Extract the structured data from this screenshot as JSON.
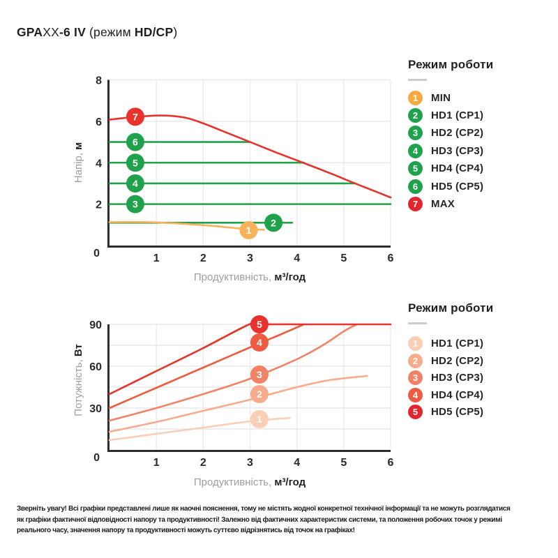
{
  "page": {
    "title_parts": [
      {
        "text": "GPA",
        "bold": true
      },
      {
        "text": "XX",
        "bold": false
      },
      {
        "text": "-6 IV",
        "bold": true
      },
      {
        "text": " (режим ",
        "bold": false
      },
      {
        "text": "HD/CP",
        "bold": true
      },
      {
        "text": ")",
        "bold": false
      }
    ]
  },
  "colors": {
    "accent_red": "#E4262C",
    "accent_green": "#1FA24B",
    "accent_orange": "#F7A93F",
    "axis_dark": "#2D2D2D",
    "grid": "#E9E9E9",
    "label_gray": "#9E9E9E"
  },
  "legend_top": {
    "title": "Режим роботи",
    "items": [
      {
        "badge": "1",
        "label": "MIN",
        "color": "#F7A93F"
      },
      {
        "badge": "2",
        "label": "HD1 (CP1)",
        "color": "#1FA24B"
      },
      {
        "badge": "3",
        "label": "HD2 (CP2)",
        "color": "#1FA24B"
      },
      {
        "badge": "4",
        "label": "HD3 (CP3)",
        "color": "#1FA24B"
      },
      {
        "badge": "5",
        "label": "HD4 (CP4)",
        "color": "#1FA24B"
      },
      {
        "badge": "6",
        "label": "HD5 (CP5)",
        "color": "#1FA24B"
      },
      {
        "badge": "7",
        "label": "MAX",
        "color": "#E4262C"
      }
    ]
  },
  "legend_bottom": {
    "title": "Режим роботи",
    "items": [
      {
        "badge": "1",
        "label": "HD1 (CP1)",
        "color": "#FACDB5"
      },
      {
        "badge": "2",
        "label": "HD2 (CP2)",
        "color": "#F8AB8B"
      },
      {
        "badge": "3",
        "label": "HD3 (CP3)",
        "color": "#F28266"
      },
      {
        "badge": "4",
        "label": "HD4 (CP4)",
        "color": "#EE5B40"
      },
      {
        "badge": "5",
        "label": "HD5 (CP5)",
        "color": "#E4262C"
      }
    ]
  },
  "chart_data": [
    {
      "type": "line",
      "title": "",
      "xlabel": "Продуктивність, м³/год",
      "ylabel": "Напір, м",
      "xlabel_gray": "Продуктивність, ",
      "xlabel_bold": "м³/год",
      "ylabel_gray": "Напір, ",
      "ylabel_bold": "м",
      "xlim": [
        0,
        6
      ],
      "ylim": [
        0,
        8
      ],
      "xticks": [
        0,
        1,
        2,
        3,
        4,
        5,
        6
      ],
      "yticks": [
        0,
        2,
        4,
        6,
        8
      ],
      "grid_x": [
        1,
        2,
        3,
        4,
        5,
        6
      ],
      "grid_y": [
        2,
        4,
        6,
        8
      ],
      "legend_position": "right",
      "series": [
        {
          "name": "HD1 (CP1)",
          "badge": "2",
          "color": "#1FA24B",
          "points": [
            [
              0,
              1.1
            ],
            [
              3.9,
              1.1
            ]
          ],
          "badge_at": [
            3.5,
            1.1
          ]
        },
        {
          "name": "HD2 (CP2)",
          "badge": "3",
          "color": "#1FA24B",
          "points": [
            [
              0,
              2
            ],
            [
              6,
              2
            ]
          ],
          "badge_at": [
            0.55,
            2
          ]
        },
        {
          "name": "HD3 (CP3)",
          "badge": "4",
          "color": "#1FA24B",
          "points": [
            [
              0,
              3
            ],
            [
              5.25,
              3
            ]
          ],
          "badge_at": [
            0.55,
            3
          ]
        },
        {
          "name": "HD4 (CP4)",
          "badge": "5",
          "color": "#1FA24B",
          "points": [
            [
              0,
              4
            ],
            [
              4.15,
              4
            ]
          ],
          "badge_at": [
            0.55,
            4
          ]
        },
        {
          "name": "HD5 (CP5)",
          "badge": "6",
          "color": "#1FA24B",
          "points": [
            [
              0,
              5
            ],
            [
              3.0,
              5
            ]
          ],
          "badge_at": [
            0.55,
            5
          ]
        },
        {
          "name": "MAX",
          "badge": "7",
          "color": "#E9322B",
          "points": [
            [
              0,
              6.08
            ],
            [
              0.5,
              6.2
            ],
            [
              1.1,
              6.28
            ],
            [
              1.6,
              6.18
            ],
            [
              2.0,
              5.9
            ],
            [
              2.5,
              5.45
            ],
            [
              3.0,
              5.0
            ],
            [
              3.55,
              4.5
            ],
            [
              4.13,
              4.0
            ],
            [
              4.7,
              3.5
            ],
            [
              5.24,
              3.0
            ],
            [
              5.6,
              2.68
            ],
            [
              6,
              2.32
            ]
          ],
          "badge_at": [
            0.55,
            6.22
          ]
        },
        {
          "name": "MIN",
          "badge": "1",
          "color": "#F9B259",
          "points": [
            [
              0,
              1.13
            ],
            [
              0.8,
              1.13
            ],
            [
              1.5,
              1.06
            ],
            [
              2.2,
              0.95
            ],
            [
              2.8,
              0.82
            ],
            [
              3.3,
              0.76
            ]
          ],
          "badge_at": [
            2.97,
            0.74
          ]
        }
      ]
    },
    {
      "type": "line",
      "title": "",
      "xlabel": "Продуктивність, м³/год",
      "ylabel": "Потужність, Вт",
      "xlabel_gray": "Продуктивність, ",
      "xlabel_bold": "м³/год",
      "ylabel_gray": "Потужність, ",
      "ylabel_bold": "Вт",
      "xlim": [
        0,
        6
      ],
      "ylim": [
        0,
        90
      ],
      "xticks": [
        0,
        1,
        2,
        3,
        4,
        5,
        6
      ],
      "yticks": [
        0,
        30,
        60,
        90
      ],
      "grid_x": [
        1,
        2,
        3,
        4,
        5,
        6
      ],
      "grid_y": [
        15,
        30,
        45,
        60,
        75,
        90
      ],
      "legend_position": "right",
      "series": [
        {
          "name": "HD1 (CP1)",
          "badge": "1",
          "color": "#FACDB5",
          "points": [
            [
              0,
              7
            ],
            [
              1,
              11.5
            ],
            [
              2,
              16
            ],
            [
              3,
              20.5
            ],
            [
              3.85,
              23
            ]
          ],
          "badge_at": [
            3.2,
            22
          ]
        },
        {
          "name": "HD2 (CP2)",
          "badge": "2",
          "color": "#F8AB8B",
          "points": [
            [
              0,
              13
            ],
            [
              1,
              20
            ],
            [
              2,
              28
            ],
            [
              3,
              36
            ],
            [
              4,
              45
            ],
            [
              4.7,
              50
            ],
            [
              5.5,
              53
            ]
          ],
          "badge_at": [
            3.2,
            40
          ]
        },
        {
          "name": "HD3 (CP3)",
          "badge": "3",
          "color": "#F28266",
          "points": [
            [
              0,
              21
            ],
            [
              1,
              30
            ],
            [
              2,
              40
            ],
            [
              3,
              51
            ],
            [
              4,
              65
            ],
            [
              4.6,
              76
            ],
            [
              5,
              85
            ],
            [
              5.28,
              90
            ]
          ],
          "badge_at": [
            3.2,
            54
          ]
        },
        {
          "name": "HD4 (CP4)",
          "badge": "4",
          "color": "#EE5B40",
          "points": [
            [
              0,
              30
            ],
            [
              1,
              44.5
            ],
            [
              2,
              59
            ],
            [
              3,
              73.5
            ],
            [
              3.6,
              82
            ],
            [
              4.15,
              90
            ]
          ],
          "badge_at": [
            3.2,
            77
          ]
        },
        {
          "name": "HD5 (CP5)",
          "badge": "5",
          "color": "#E9322B",
          "points": [
            [
              0,
              40
            ],
            [
              1,
              56.5
            ],
            [
              2,
              73
            ],
            [
              2.95,
              89.5
            ],
            [
              3.15,
              90
            ],
            [
              4,
              90
            ],
            [
              5,
              90
            ],
            [
              6,
              90
            ]
          ],
          "badge_at": [
            3.2,
            90
          ]
        }
      ]
    }
  ],
  "footer": {
    "lines": [
      "Зверніть увагу! Всі графіки представлені лише як наочні пояснення, тому не містять жодної конкретної технічної інформації та не можуть розглядатися",
      "як графіки фактичної відповідності напору та продуктивності! Залежно від фактичних характеристик системи, та положення робочих точок у режимі",
      "реального часу, значення напору та продуктивності можуть суттєво відрізнятись від точок на графіках!"
    ]
  }
}
